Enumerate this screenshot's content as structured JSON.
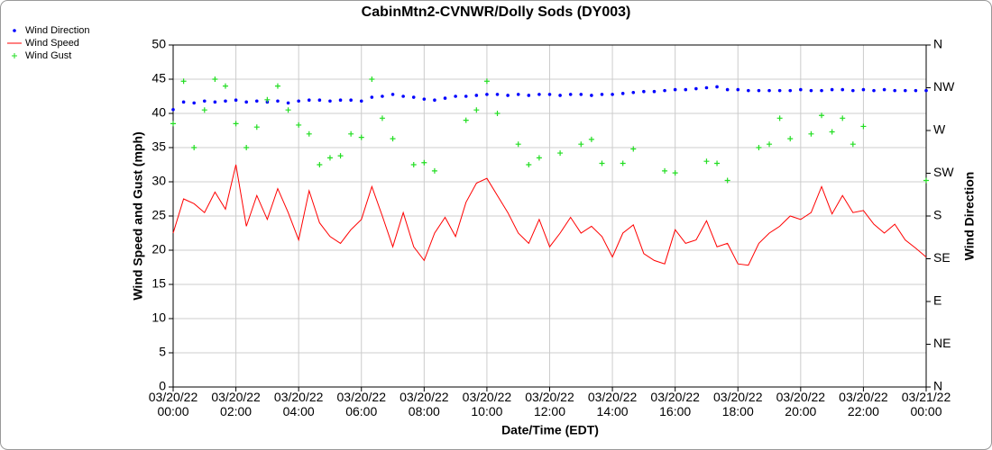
{
  "chart_data": {
    "type": "line",
    "title": "CabinMtn2-CVNWR/Dolly Sods (DY003)",
    "xlabel": "Date/Time (EDT)",
    "ylabel": "Wind Speed and Gust (mph)",
    "y2label": "Wind Direction",
    "legend": "top-left",
    "grid": true,
    "xlim": [
      "03/20/22 00:00",
      "03/21/22 00:00"
    ],
    "xticks": [
      "03/20/22 00:00",
      "03/20/22 02:00",
      "03/20/22 04:00",
      "03/20/22 06:00",
      "03/20/22 08:00",
      "03/20/22 10:00",
      "03/20/22 12:00",
      "03/20/22 14:00",
      "03/20/22 16:00",
      "03/20/22 18:00",
      "03/20/22 20:00",
      "03/20/22 22:00",
      "03/21/22 00:00"
    ],
    "ylim": [
      0,
      50
    ],
    "yticks": [
      0,
      5,
      10,
      15,
      20,
      25,
      30,
      35,
      40,
      45,
      50
    ],
    "y2lim": [
      0,
      360
    ],
    "y2ticks": [
      {
        "value": 0,
        "label": "N"
      },
      {
        "value": 45,
        "label": "NE"
      },
      {
        "value": 90,
        "label": "E"
      },
      {
        "value": 135,
        "label": "SE"
      },
      {
        "value": 180,
        "label": "S"
      },
      {
        "value": 225,
        "label": "SW"
      },
      {
        "value": 270,
        "label": "W"
      },
      {
        "value": 315,
        "label": "NW"
      },
      {
        "value": 360,
        "label": "N"
      }
    ],
    "x": [
      "03/20/22 00:00",
      "03/20/22 00:20",
      "03/20/22 00:40",
      "03/20/22 01:00",
      "03/20/22 01:20",
      "03/20/22 01:40",
      "03/20/22 02:00",
      "03/20/22 02:20",
      "03/20/22 02:40",
      "03/20/22 03:00",
      "03/20/22 03:20",
      "03/20/22 03:40",
      "03/20/22 04:00",
      "03/20/22 04:20",
      "03/20/22 04:40",
      "03/20/22 05:00",
      "03/20/22 05:20",
      "03/20/22 05:40",
      "03/20/22 06:00",
      "03/20/22 06:20",
      "03/20/22 06:40",
      "03/20/22 07:00",
      "03/20/22 07:20",
      "03/20/22 07:40",
      "03/20/22 08:00",
      "03/20/22 08:20",
      "03/20/22 08:40",
      "03/20/22 09:00",
      "03/20/22 09:20",
      "03/20/22 09:40",
      "03/20/22 10:00",
      "03/20/22 10:20",
      "03/20/22 10:40",
      "03/20/22 11:00",
      "03/20/22 11:20",
      "03/20/22 11:40",
      "03/20/22 12:00",
      "03/20/22 12:20",
      "03/20/22 12:40",
      "03/20/22 13:00",
      "03/20/22 13:20",
      "03/20/22 13:40",
      "03/20/22 14:00",
      "03/20/22 14:20",
      "03/20/22 14:40",
      "03/20/22 15:00",
      "03/20/22 15:20",
      "03/20/22 15:40",
      "03/20/22 16:00",
      "03/20/22 16:20",
      "03/20/22 16:40",
      "03/20/22 17:00",
      "03/20/22 17:20",
      "03/20/22 17:40",
      "03/20/22 18:00",
      "03/20/22 18:20",
      "03/20/22 18:40",
      "03/20/22 19:00",
      "03/20/22 19:20",
      "03/20/22 19:40",
      "03/20/22 20:00",
      "03/20/22 20:20",
      "03/20/22 20:40",
      "03/20/22 21:00",
      "03/20/22 21:20",
      "03/20/22 21:40",
      "03/20/22 22:00",
      "03/20/22 22:20",
      "03/20/22 22:40",
      "03/20/22 23:00",
      "03/20/22 23:20",
      "03/20/22 23:40",
      "03/21/22 00:00"
    ],
    "series": [
      {
        "name": "Wind Direction",
        "color": "#0000ff",
        "axis": "y2",
        "marker": "dot",
        "values": [
          292,
          300,
          299,
          301,
          300,
          301,
          302,
          300,
          301,
          300,
          301,
          299,
          301,
          302,
          302,
          301,
          302,
          302,
          301,
          305,
          306,
          308,
          306,
          305,
          303,
          302,
          304,
          306,
          306,
          307,
          308,
          308,
          307,
          308,
          307,
          308,
          308,
          307,
          308,
          308,
          307,
          308,
          308,
          309,
          310,
          311,
          311,
          312,
          313,
          313,
          314,
          315,
          316,
          313,
          313,
          312,
          312,
          312,
          312,
          312,
          313,
          312,
          312,
          313,
          313,
          312,
          313,
          312,
          313,
          312,
          312,
          312,
          312
        ]
      },
      {
        "name": "Wind Speed",
        "color": "#ff0000",
        "marker": "line",
        "values": [
          22.5,
          27.5,
          26.8,
          25.5,
          28.5,
          26,
          32.5,
          23.5,
          28,
          24.5,
          29,
          25.5,
          21.5,
          28.7,
          24,
          22,
          21,
          23,
          24.5,
          29.3,
          25,
          20.5,
          25.5,
          20.5,
          18.5,
          22.5,
          24.8,
          22,
          27,
          29.8,
          30.5,
          28,
          25.5,
          22.5,
          21,
          24.5,
          20.5,
          22.5,
          24.8,
          22.5,
          23.5,
          22,
          19,
          22.5,
          23.7,
          19.5,
          18.5,
          18,
          23,
          21,
          21.5,
          24.3,
          20.5,
          21,
          18,
          17.8,
          21,
          22.5,
          23.5,
          25,
          24.5,
          25.5,
          29.3,
          25.3,
          28,
          25.5,
          25.8,
          23.8,
          22.5,
          23.8,
          21.5,
          20.3,
          19
        ]
      },
      {
        "name": "Wind Gust",
        "color": "#22dd22",
        "marker": "plus",
        "values": [
          38.5,
          44.7,
          35,
          40.5,
          45,
          44,
          38.5,
          35,
          38,
          42,
          44,
          40.5,
          38.3,
          37,
          32.5,
          33.5,
          33.8,
          37,
          36.5,
          45,
          39.3,
          36.3,
          null,
          32.5,
          32.8,
          31.6,
          null,
          null,
          39,
          40.5,
          44.7,
          40,
          null,
          35.5,
          32.5,
          33.5,
          null,
          34.2,
          null,
          35.5,
          36.2,
          32.7,
          null,
          32.7,
          34.8,
          null,
          null,
          31.6,
          31.3,
          null,
          null,
          33,
          32.7,
          30.2,
          null,
          null,
          35,
          35.5,
          39.3,
          36.3,
          null,
          37,
          39.7,
          37.3,
          39.3,
          35.5,
          38.1,
          null,
          null,
          null,
          null,
          null,
          30.2
        ]
      }
    ]
  }
}
